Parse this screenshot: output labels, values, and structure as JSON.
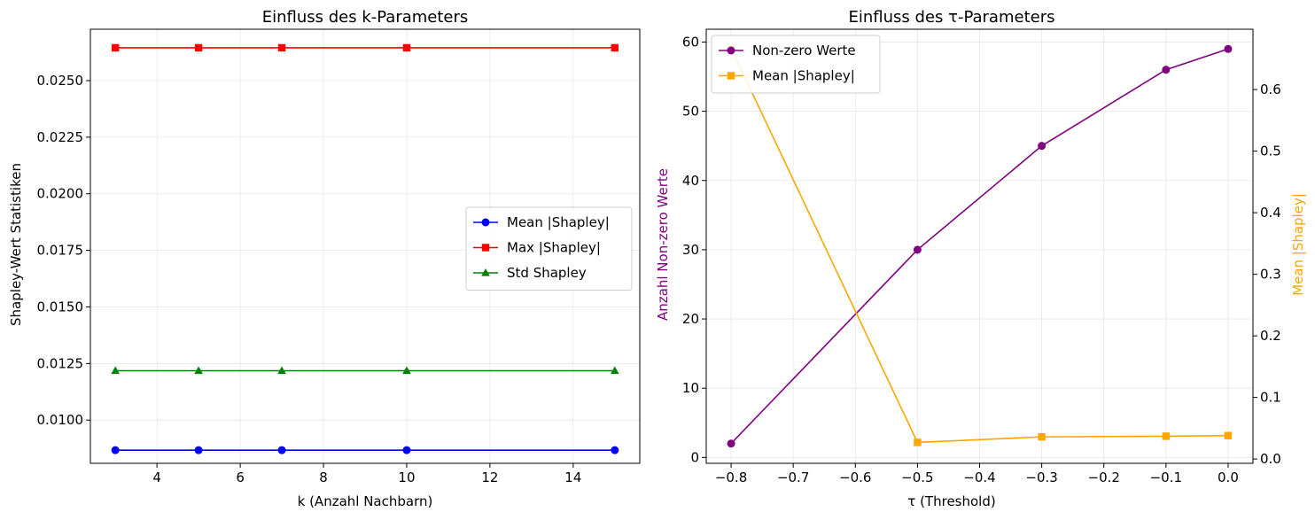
{
  "chart_data": [
    {
      "type": "line",
      "title": "Einfluss des k-Parameters",
      "xlabel": "k (Anzahl Nachbarn)",
      "ylabel": "Shapley-Wert Statistiken",
      "x": [
        3,
        5,
        7,
        10,
        15
      ],
      "xlim": [
        2.4,
        15.6
      ],
      "ylim": [
        0.00809,
        0.02727
      ],
      "xticks": [
        4,
        6,
        8,
        10,
        12,
        14
      ],
      "xtick_labels": [
        "4",
        "6",
        "8",
        "10",
        "12",
        "14"
      ],
      "yticks": [
        0.01,
        0.0125,
        0.015,
        0.0175,
        0.02,
        0.0225,
        0.025
      ],
      "ytick_labels": [
        "0.0100",
        "0.0125",
        "0.0150",
        "0.0175",
        "0.0200",
        "0.0225",
        "0.0250"
      ],
      "grid": true,
      "legend_position": "center-right",
      "series": [
        {
          "name": "Mean |Shapley|",
          "values": [
            0.00867,
            0.00867,
            0.00867,
            0.00867,
            0.00867
          ],
          "color": "#0000ff",
          "marker": "circle"
        },
        {
          "name": "Max |Shapley|",
          "values": [
            0.02645,
            0.02645,
            0.02645,
            0.02645,
            0.02645
          ],
          "color": "#ff0000",
          "marker": "square"
        },
        {
          "name": "Std Shapley",
          "values": [
            0.01218,
            0.01218,
            0.01218,
            0.01218,
            0.01218
          ],
          "color": "#008000",
          "marker": "triangle"
        }
      ]
    },
    {
      "type": "line",
      "title": "Einfluss des τ-Parameters",
      "xlabel": "τ (Threshold)",
      "ylabel": "Anzahl Non-zero Werte",
      "y2label": "Mean |Shapley|",
      "x": [
        -0.8,
        -0.5,
        -0.3,
        -0.1,
        0.0
      ],
      "xlim": [
        -0.84,
        0.04
      ],
      "ylim": [
        -0.85,
        61.85
      ],
      "y2lim": [
        -0.007,
        0.698
      ],
      "xticks": [
        -0.8,
        -0.7,
        -0.6,
        -0.5,
        -0.4,
        -0.3,
        -0.2,
        -0.1,
        0.0
      ],
      "xtick_labels": [
        "−0.8",
        "−0.7",
        "−0.6",
        "−0.5",
        "−0.4",
        "−0.3",
        "−0.2",
        "−0.1",
        "0.0"
      ],
      "yticks": [
        0,
        10,
        20,
        30,
        40,
        50,
        60
      ],
      "ytick_labels": [
        "0",
        "10",
        "20",
        "30",
        "40",
        "50",
        "60"
      ],
      "y2ticks": [
        0.0,
        0.1,
        0.2,
        0.3,
        0.4,
        0.5,
        0.6
      ],
      "y2tick_labels": [
        "0.0",
        "0.1",
        "0.2",
        "0.3",
        "0.4",
        "0.5",
        "0.6"
      ],
      "grid": true,
      "legend_position": "top-left",
      "series": [
        {
          "name": "Non-zero Werte",
          "axis": "left",
          "values": [
            2,
            30,
            45,
            56,
            59
          ],
          "color": "#800080",
          "marker": "circle"
        },
        {
          "name": "Mean |Shapley|",
          "axis": "right",
          "values": [
            0.667,
            0.027,
            0.036,
            0.037,
            0.038
          ],
          "color": "#ffa500",
          "marker": "square"
        }
      ]
    }
  ]
}
